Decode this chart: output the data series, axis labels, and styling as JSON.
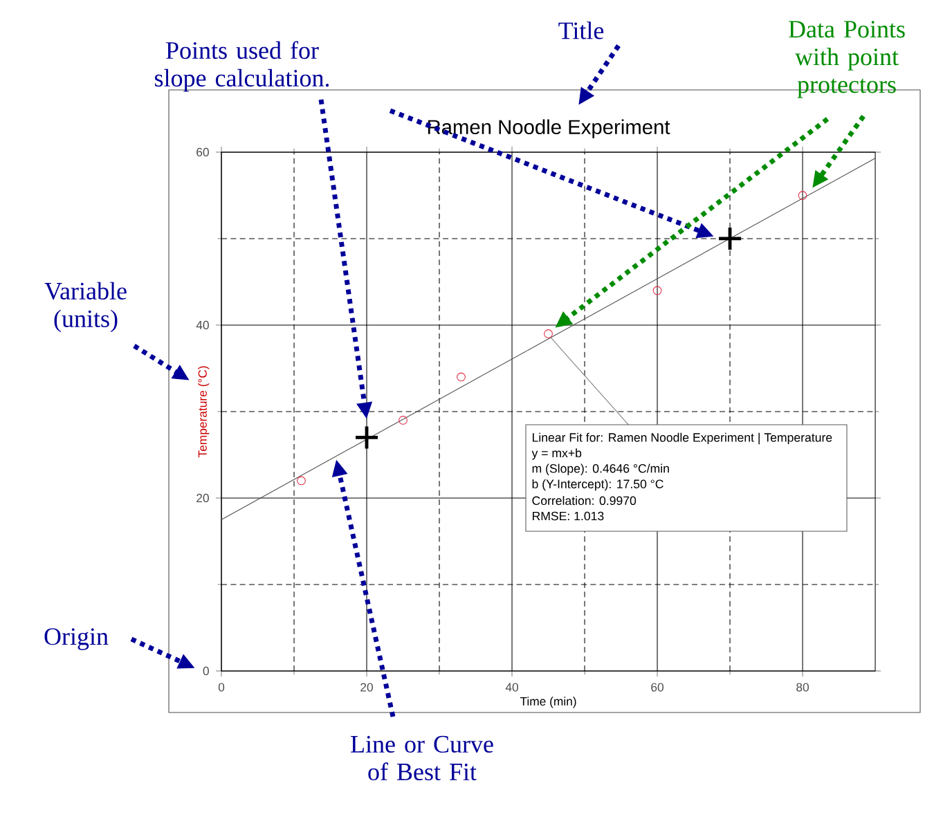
{
  "chart_data": {
    "type": "scatter",
    "title": "Ramen Noodle Experiment",
    "xlabel": "Time (min)",
    "ylabel": "Temperature (°C)",
    "xlim": [
      0,
      90
    ],
    "ylim": [
      0,
      60
    ],
    "xticks": [
      0,
      20,
      40,
      60,
      80
    ],
    "yticks": [
      0,
      20,
      40,
      60
    ],
    "grid": true,
    "series": [
      {
        "type": "scatter",
        "color": "#e0304a",
        "marker": "circle",
        "x": [
          11,
          25,
          33,
          45,
          60,
          80
        ],
        "values": [
          22,
          29,
          34,
          39,
          44,
          55
        ]
      },
      {
        "type": "line",
        "color": "#505050",
        "marker": "none",
        "line_style": "solid",
        "x": [
          0,
          90
        ],
        "values": [
          17.5,
          59.3
        ]
      },
      {
        "type": "scatter",
        "color": "#000000",
        "marker": "cross",
        "x": [
          20,
          70
        ],
        "values": [
          27,
          50
        ]
      }
    ],
    "annotations": [
      "Points used for slope calculation.",
      "Title",
      "Data Points with point protectors",
      "Variable (units)",
      "Origin",
      "Line or Curve of Best Fit",
      {
        "text": "Linear Fit for:  Ramen Noodle Experiment | Temperature",
        "x": 45,
        "y": 39
      },
      "y = mx+b",
      "m (Slope): 0.4646 °C/min",
      "b (Y-Intercept): 17.50 °C",
      "Correlation: 0.9970",
      "RMSE: 1.013"
    ]
  }
}
